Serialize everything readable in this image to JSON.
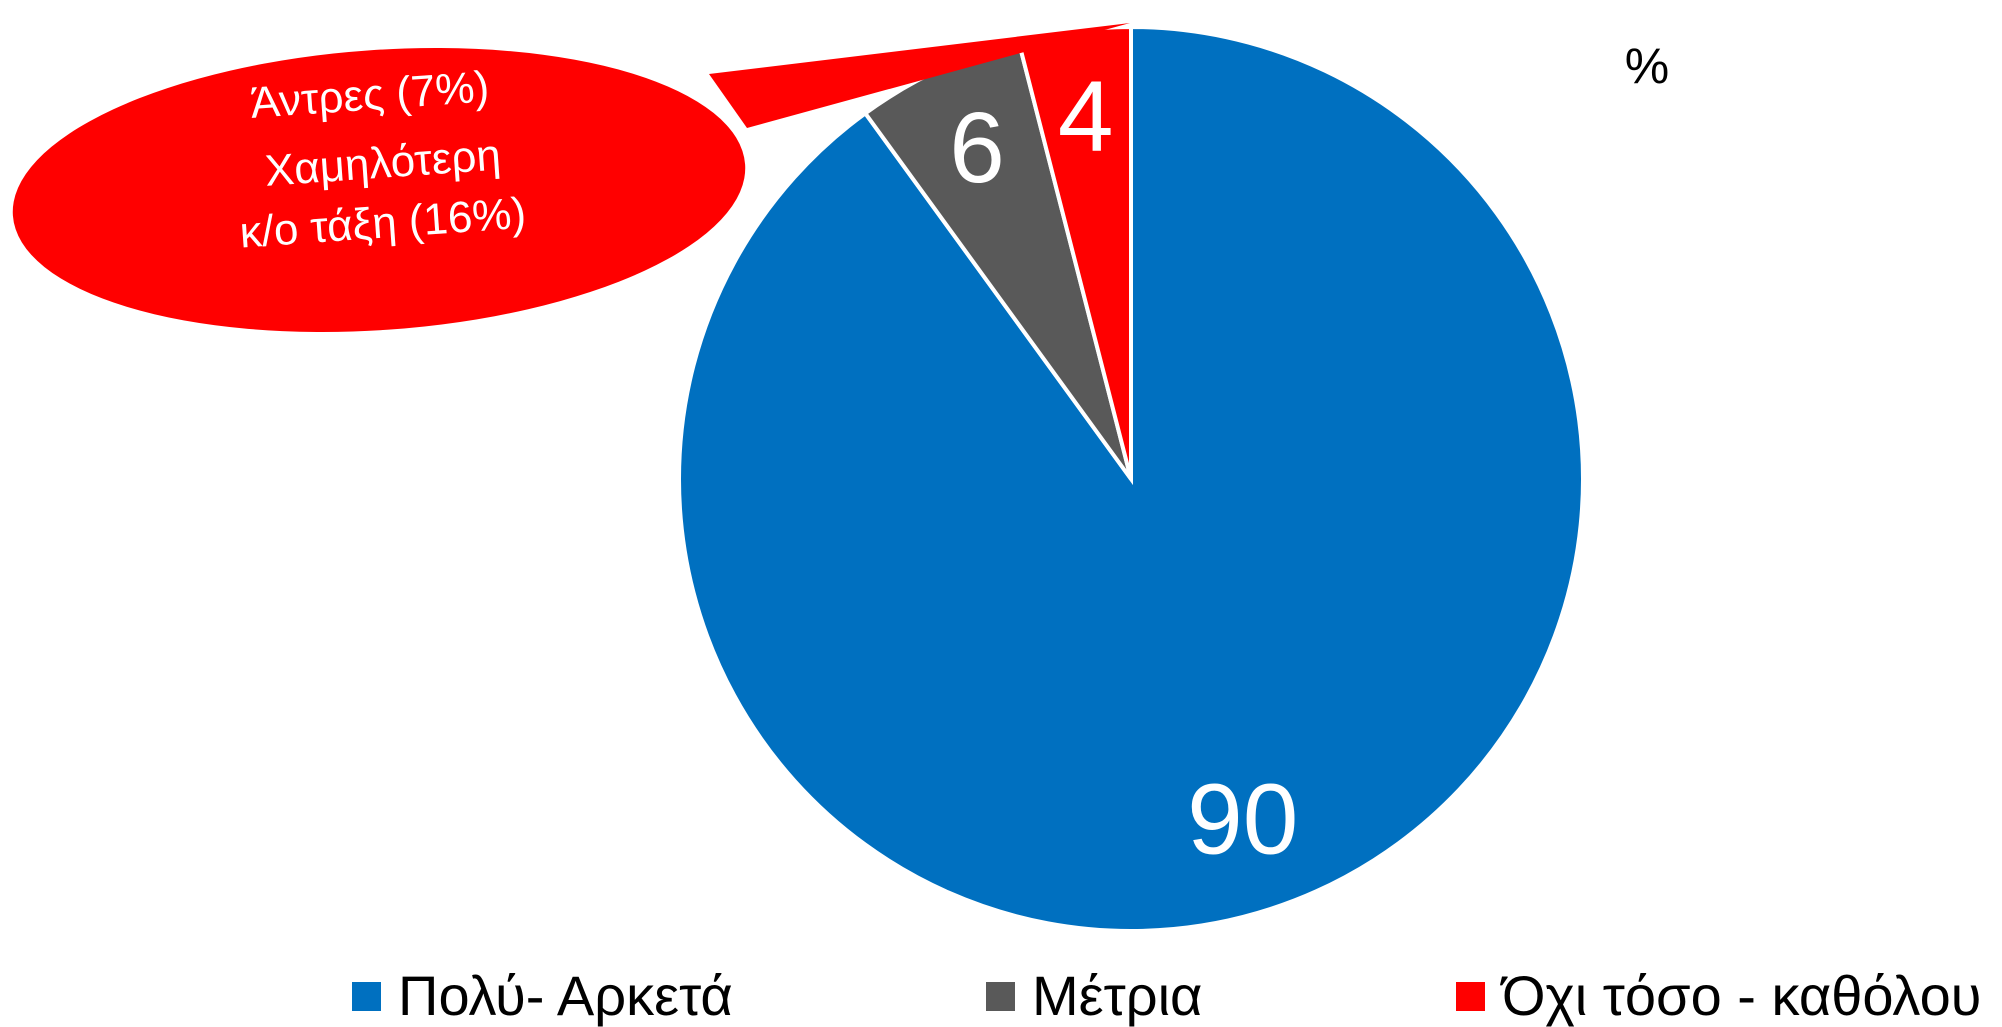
{
  "chart_data": {
    "type": "pie",
    "unit_label": "%",
    "categories": [
      "Πολύ- Αρκετά",
      "Μέτρια",
      "Όχι τόσο - καθόλου"
    ],
    "values": [
      90,
      6,
      4
    ],
    "colors": [
      "#0070c0",
      "#595959",
      "#ff0000"
    ],
    "annotation": {
      "lines": [
        "Άντρες (7%)",
        "Χαμηλότερη",
        "κ/ο τάξη  (16%)"
      ],
      "color": "#ff0000"
    }
  }
}
